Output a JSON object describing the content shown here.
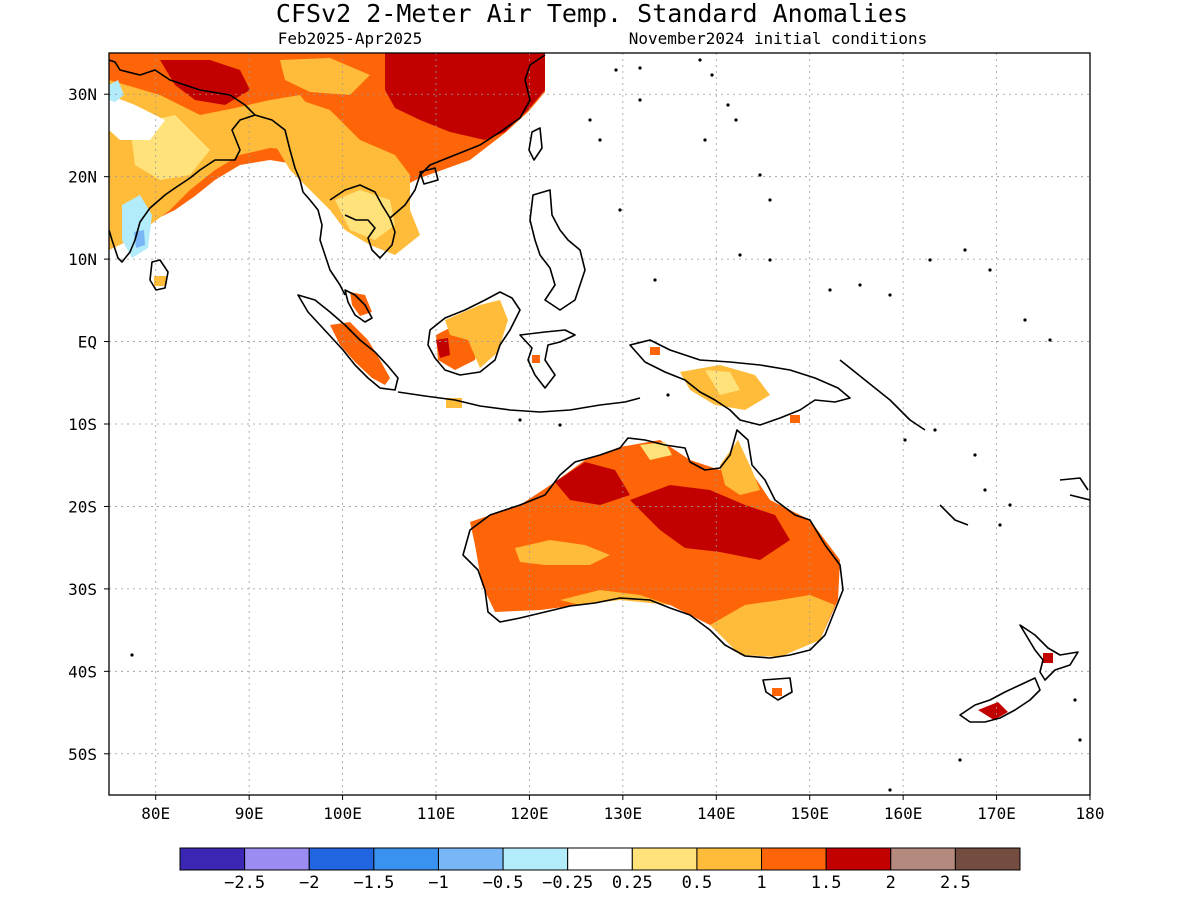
{
  "header": {
    "title": "CFSv2 2-Meter Air Temp. Standard Anomalies",
    "period": "Feb2025-Apr2025",
    "initial_conditions": "November2024 initial conditions"
  },
  "map": {
    "lon_range": [
      75,
      180
    ],
    "lat_range": [
      -55,
      35
    ],
    "lon_ticks": [
      {
        "value": 80,
        "label": "80E"
      },
      {
        "value": 90,
        "label": "90E"
      },
      {
        "value": 100,
        "label": "100E"
      },
      {
        "value": 110,
        "label": "110E"
      },
      {
        "value": 120,
        "label": "120E"
      },
      {
        "value": 130,
        "label": "130E"
      },
      {
        "value": 140,
        "label": "140E"
      },
      {
        "value": 150,
        "label": "150E"
      },
      {
        "value": 160,
        "label": "160E"
      },
      {
        "value": 170,
        "label": "170E"
      },
      {
        "value": 180,
        "label": "180"
      }
    ],
    "lat_ticks": [
      {
        "value": 30,
        "label": "30N"
      },
      {
        "value": 20,
        "label": "20N"
      },
      {
        "value": 10,
        "label": "10N"
      },
      {
        "value": 0,
        "label": "EQ"
      },
      {
        "value": -10,
        "label": "10S"
      },
      {
        "value": -20,
        "label": "20S"
      },
      {
        "value": -30,
        "label": "30S"
      },
      {
        "value": -40,
        "label": "40S"
      },
      {
        "value": -50,
        "label": "50S"
      }
    ],
    "gridlines": "dotted"
  },
  "colorbar": {
    "colors": [
      "#3a27b4",
      "#9b8cf2",
      "#2165e0",
      "#3a92f0",
      "#78b6f6",
      "#b2ecfa",
      "#ffffff",
      "#ffe27a",
      "#ffbb3a",
      "#fd6508",
      "#c30000",
      "#b48a7f",
      "#744d40"
    ],
    "labels": [
      "-2.5",
      "-2",
      "-1.5",
      "-1",
      "-0.5",
      "-0.25",
      "0.25",
      "0.5",
      "1",
      "1.5",
      "2",
      "2.5"
    ]
  },
  "anomaly_regions": [
    {
      "region": "South China",
      "level": 2
    },
    {
      "region": "North India / Himalaya",
      "level": 1.5
    },
    {
      "region": "Indochina",
      "level": 1
    },
    {
      "region": "Southern India",
      "level": -0.5
    },
    {
      "region": "Borneo",
      "level": 1
    },
    {
      "region": "Sumatra",
      "level": 1.5
    },
    {
      "region": "New Guinea",
      "level": 0.5
    },
    {
      "region": "Northern Australia interior",
      "level": 2
    },
    {
      "region": "Central & Western Australia",
      "level": 1.5
    },
    {
      "region": "Southeast Australia",
      "level": 0.5
    },
    {
      "region": "New Zealand South Island",
      "level": 2
    }
  ]
}
